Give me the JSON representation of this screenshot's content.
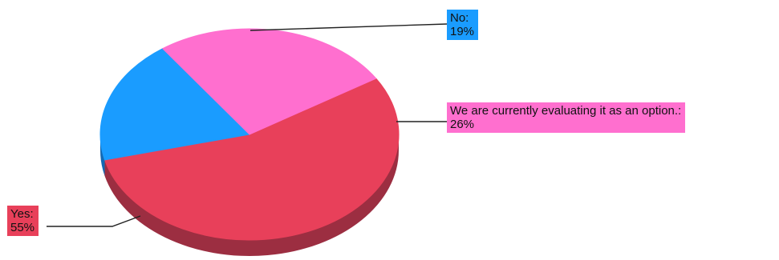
{
  "chart_data": {
    "type": "pie",
    "style": "3d",
    "slices": [
      {
        "label": "Yes:",
        "value": 55,
        "value_text": "55%",
        "color": "#e8405a",
        "shade": "#9c2e41"
      },
      {
        "label": "No:",
        "value": 19,
        "value_text": "19%",
        "color": "#1a9cff",
        "shade": "#1369b3"
      },
      {
        "label": "We are currently evaluating it as an option.:",
        "value": 26,
        "value_text": "26%",
        "color": "#ff6fcf",
        "shade": "#b0508f"
      }
    ]
  }
}
